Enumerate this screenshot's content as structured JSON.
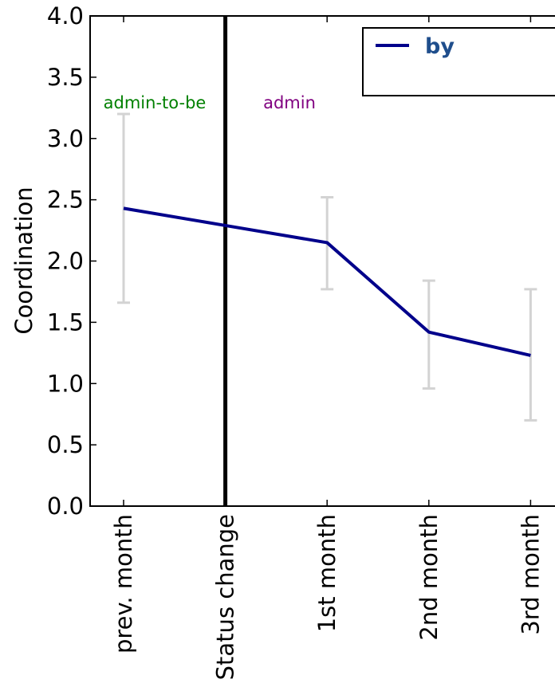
{
  "chart_data": {
    "type": "line",
    "title": "",
    "xlabel": "",
    "ylabel": "Coordination",
    "ylim": [
      0,
      4.0
    ],
    "yticks": [
      "0.0",
      "0.5",
      "1.0",
      "1.5",
      "2.0",
      "2.5",
      "3.0",
      "3.5",
      "4.0"
    ],
    "categories": [
      "prev. month",
      "Status change",
      "1st month",
      "2nd month",
      "3rd month"
    ],
    "series": [
      {
        "name": "by",
        "color": "#00008b",
        "values": [
          2.43,
          2.29,
          2.15,
          1.42,
          1.23
        ]
      }
    ],
    "error_bars": {
      "color": "#d3d3d3",
      "categories": [
        "prev. month",
        "1st month",
        "2nd month",
        "3rd month"
      ],
      "low": [
        1.66,
        1.77,
        0.96,
        0.7
      ],
      "high": [
        3.2,
        2.52,
        1.84,
        1.77
      ]
    },
    "status_change_line": {
      "category": "Status change",
      "color": "#000000"
    },
    "annotations": [
      {
        "text": "admin-to-be",
        "color": "#008000"
      },
      {
        "text": "admin",
        "color": "#800080"
      }
    ],
    "legend": {
      "position": "top-right",
      "text_color": "#1f4e8c"
    },
    "grid": false
  }
}
